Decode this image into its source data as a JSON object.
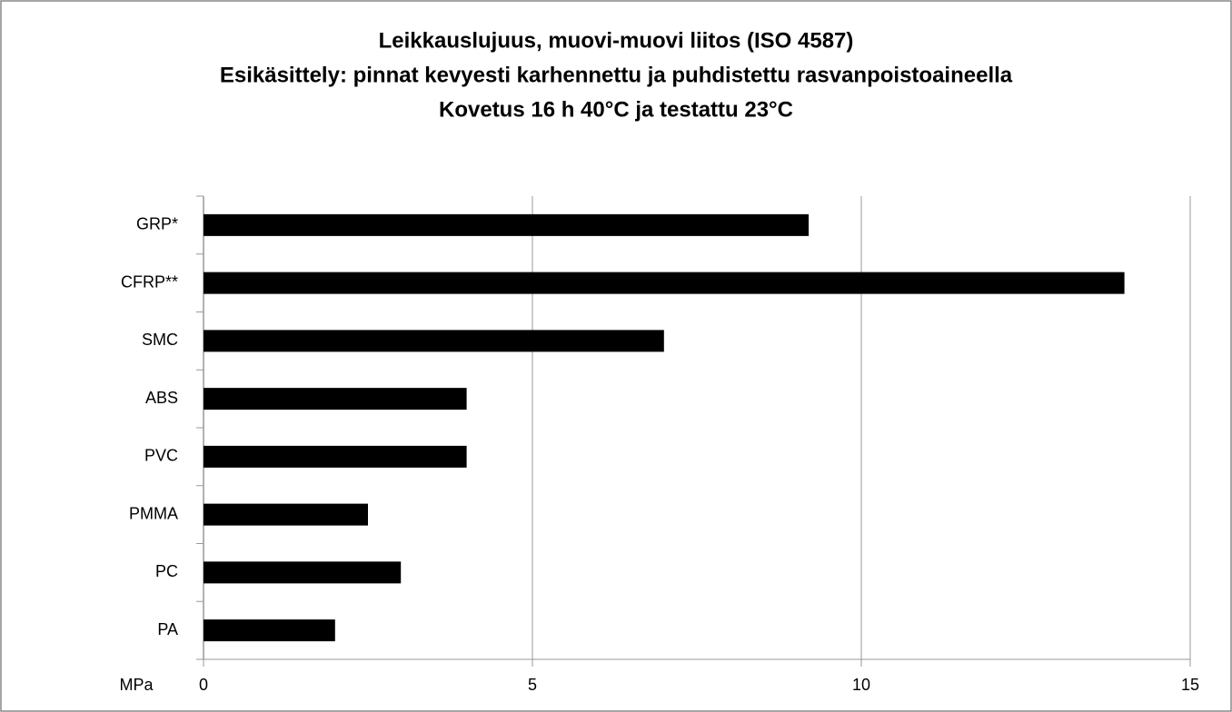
{
  "chart_data": {
    "type": "bar",
    "orientation": "horizontal",
    "title": [
      "Leikkauslujuus, muovi-muovi liitos (ISO 4587)",
      "Esikäsittely: pinnat kevyesti karhennettu ja puhdistettu rasvanpoistoaineella",
      "Kovetus 16 h 40°C ja testattu 23°C"
    ],
    "xlabel": "MPa",
    "categories": [
      "GRP*",
      "CFRP**",
      "SMC",
      "ABS",
      "PVC",
      "PMMA",
      "PC",
      "PA"
    ],
    "values": [
      9.2,
      14,
      7,
      4,
      4,
      2.5,
      3,
      2
    ],
    "color": "#000000",
    "xlim": [
      0,
      15
    ],
    "xticks": [
      0,
      5,
      10,
      15
    ],
    "grid": true
  }
}
